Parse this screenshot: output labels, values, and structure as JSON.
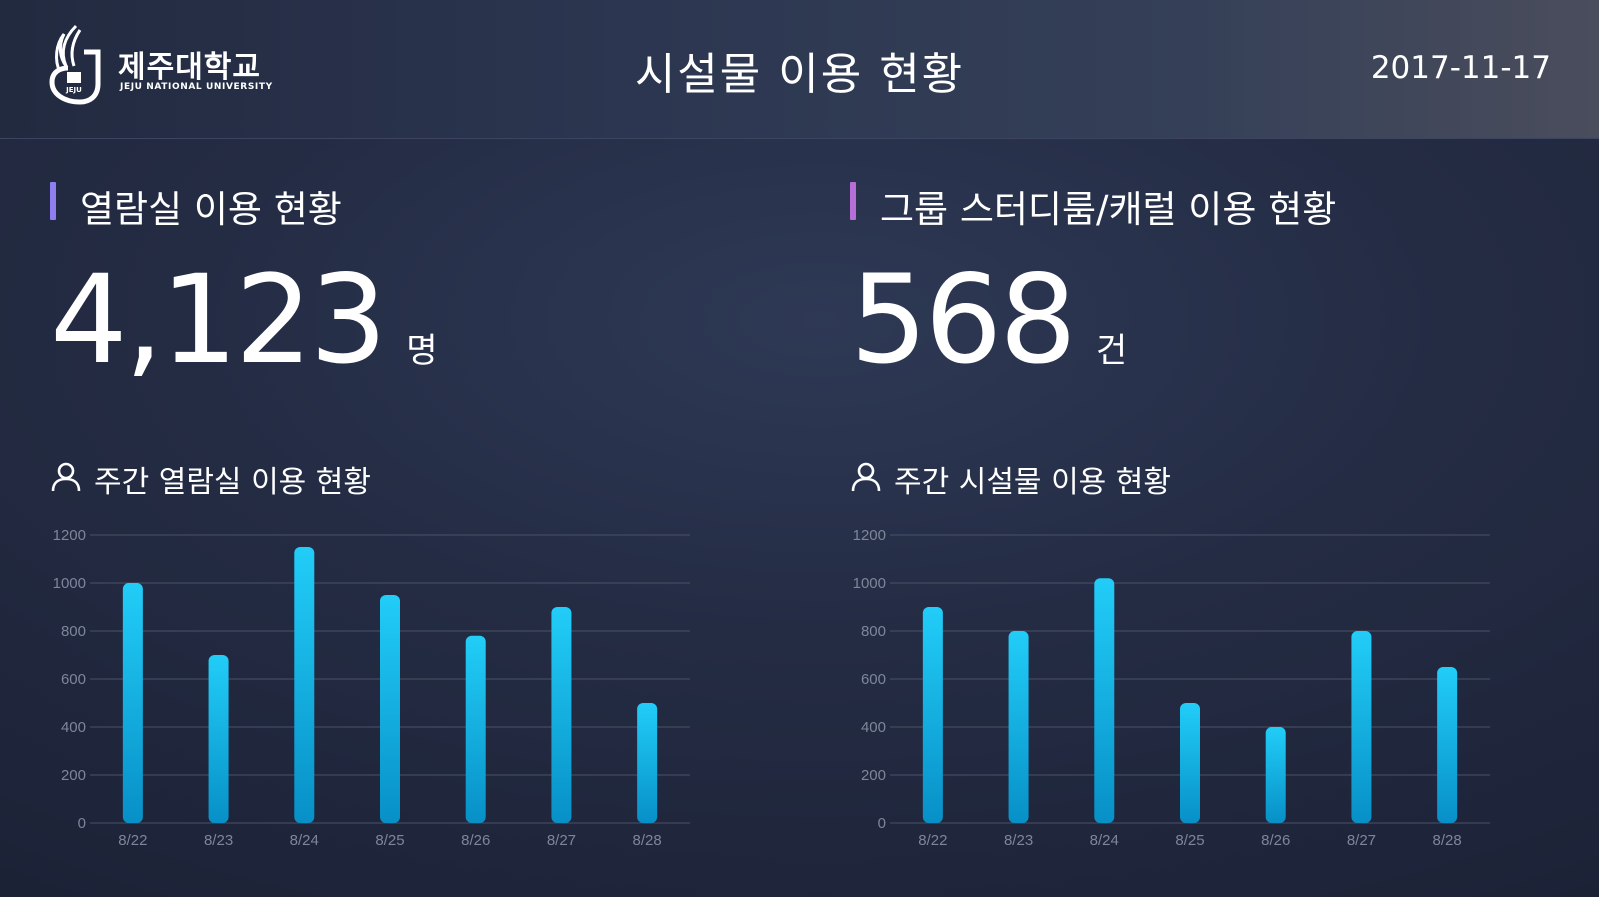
{
  "header": {
    "logo_ko": "제주대학교",
    "logo_en": "JEJU NATIONAL UNIVERSITY",
    "title": "시설물 이용 현황",
    "date": "2017-11-17"
  },
  "left_panel": {
    "section_title": "열람실 이용 현황",
    "big_value": "4,123",
    "big_unit": "명",
    "chart_title": "주간 열람실 이용 현황",
    "accent_color": "#8f7ef0"
  },
  "right_panel": {
    "section_title": "그룹 스터디룸/캐럴 이용 현황",
    "big_value": "568",
    "big_unit": "건",
    "chart_title": "주간 시설물 이용 현황",
    "accent_color": "#b56fd6"
  },
  "icons": {
    "user": "user-icon",
    "logo": "jeju-logo-icon"
  },
  "chart_data": [
    {
      "type": "bar",
      "title": "주간 열람실 이용 현황",
      "categories": [
        "8/22",
        "8/23",
        "8/24",
        "8/25",
        "8/26",
        "8/27",
        "8/28"
      ],
      "values": [
        1000,
        700,
        1150,
        950,
        780,
        900,
        500
      ],
      "yticks": [
        0,
        200,
        400,
        600,
        800,
        1000,
        1200
      ],
      "ylim": [
        0,
        1200
      ],
      "xlabel": "",
      "ylabel": "",
      "grid": true,
      "bar_color_top": "#22cdf8",
      "bar_color_bottom": "#0790c7"
    },
    {
      "type": "bar",
      "title": "주간 시설물 이용 현황",
      "categories": [
        "8/22",
        "8/23",
        "8/24",
        "8/25",
        "8/26",
        "8/27",
        "8/28"
      ],
      "values": [
        900,
        800,
        1020,
        500,
        400,
        800,
        650
      ],
      "yticks": [
        0,
        200,
        400,
        600,
        800,
        1000,
        1200
      ],
      "ylim": [
        0,
        1200
      ],
      "xlabel": "",
      "ylabel": "",
      "grid": true,
      "bar_color_top": "#22cdf8",
      "bar_color_bottom": "#0790c7"
    }
  ]
}
